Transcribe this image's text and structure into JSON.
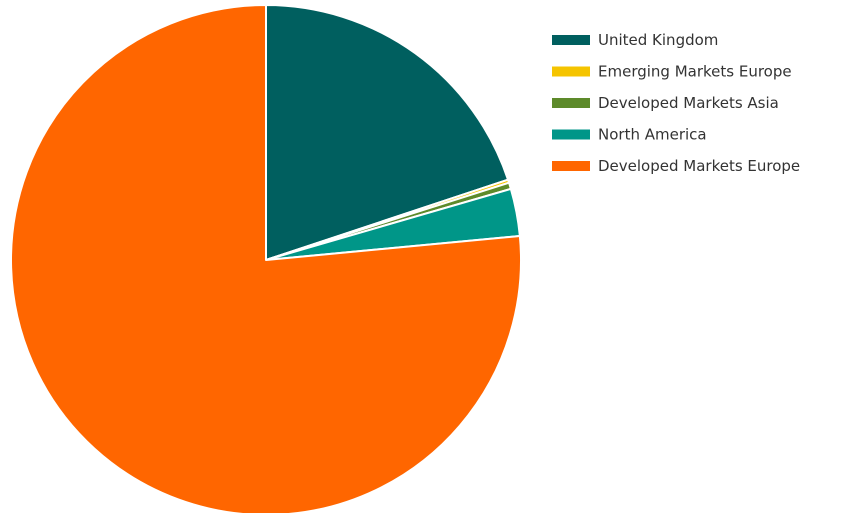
{
  "chart_data": {
    "type": "pie",
    "title": "",
    "legend_position": "top-right",
    "slices": [
      {
        "label": "United Kingdom",
        "value": 19.9,
        "color": "#005f5f"
      },
      {
        "label": "Emerging Markets Europe",
        "value": 0.2,
        "color": "#f5c400"
      },
      {
        "label": "Developed Markets Asia",
        "value": 0.4,
        "color": "#5d8a2a"
      },
      {
        "label": "North America",
        "value": 3.0,
        "color": "#009688"
      },
      {
        "label": "Developed Markets Europe",
        "value": 76.5,
        "color": "#ff6600"
      }
    ]
  }
}
